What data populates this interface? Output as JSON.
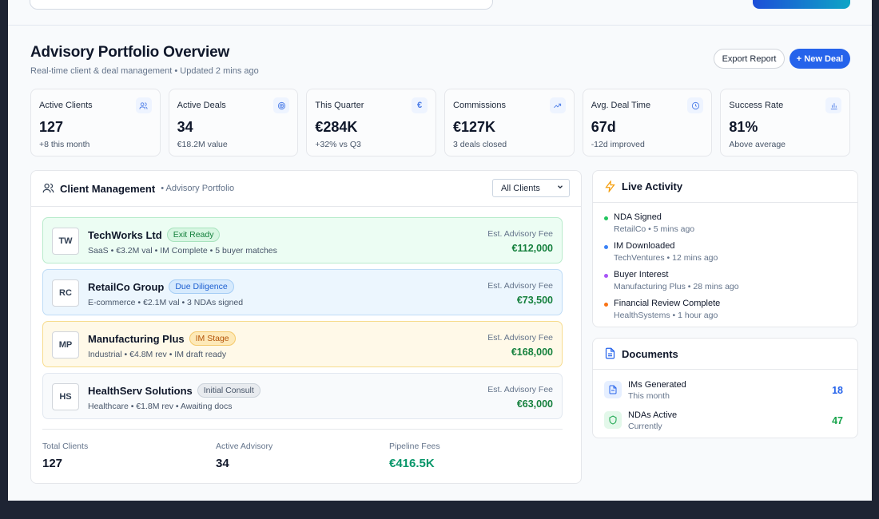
{
  "header": {
    "title": "Advisory Portfolio Overview",
    "subtitle": "Real-time client & deal management • Updated 2 mins ago",
    "export_label": "Export Report",
    "new_deal_label": "+ New Deal"
  },
  "stats": [
    {
      "label": "Active Clients",
      "value": "127",
      "sub": "+8 this month",
      "icon": "users-icon"
    },
    {
      "label": "Active Deals",
      "value": "34",
      "sub": "€18.2M value",
      "icon": "target-icon"
    },
    {
      "label": "This Quarter",
      "value": "€284K",
      "sub": "+32% vs Q3",
      "icon": "euro-icon"
    },
    {
      "label": "Commissions",
      "value": "€127K",
      "sub": "3 deals closed",
      "icon": "trending-up-icon"
    },
    {
      "label": "Avg. Deal Time",
      "value": "67d",
      "sub": "-12d improved",
      "icon": "clock-icon"
    },
    {
      "label": "Success Rate",
      "value": "81%",
      "sub": "Above average",
      "icon": "bar-chart-icon"
    }
  ],
  "clients": {
    "title": "Client Management",
    "tag": "• Advisory Portfolio",
    "filter": "All Clients",
    "items": [
      {
        "initials": "TW",
        "name": "TechWorks Ltd",
        "badge": "Exit Ready",
        "meta": "SaaS • €3.2M val • IM Complete • 5 buyer matches",
        "fee_label": "Est. Advisory Fee",
        "fee": "€112,000"
      },
      {
        "initials": "RC",
        "name": "RetailCo Group",
        "badge": "Due Diligence",
        "meta": "E-commerce • €2.1M val • 3 NDAs signed",
        "fee_label": "Est. Advisory Fee",
        "fee": "€73,500"
      },
      {
        "initials": "MP",
        "name": "Manufacturing Plus",
        "badge": "IM Stage",
        "meta": "Industrial • €4.8M rev • IM draft ready",
        "fee_label": "Est. Advisory Fee",
        "fee": "€168,000"
      },
      {
        "initials": "HS",
        "name": "HealthServ Solutions",
        "badge": "Initial Consult",
        "meta": "Healthcare • €1.8M rev • Awaiting docs",
        "fee_label": "Est. Advisory Fee",
        "fee": "€63,000"
      }
    ],
    "summary": [
      {
        "label": "Total Clients",
        "value": "127"
      },
      {
        "label": "Active Advisory",
        "value": "34"
      },
      {
        "label": "Pipeline Fees",
        "value": "€416.5K"
      }
    ]
  },
  "activity": {
    "title": "Live Activity",
    "items": [
      {
        "title": "NDA Signed",
        "sub": "RetailCo • 5 mins ago",
        "color": "#22c55e"
      },
      {
        "title": "IM Downloaded",
        "sub": "TechVentures • 12 mins ago",
        "color": "#3b82f6"
      },
      {
        "title": "Buyer Interest",
        "sub": "Manufacturing Plus • 28 mins ago",
        "color": "#a855f7"
      },
      {
        "title": "Financial Review Complete",
        "sub": "HealthSystems • 1 hour ago",
        "color": "#f97316"
      }
    ]
  },
  "documents": {
    "title": "Documents",
    "items": [
      {
        "title": "IMs Generated",
        "sub": "This month",
        "count": "18",
        "color": "#2563eb"
      },
      {
        "title": "NDAs Active",
        "sub": "Currently",
        "count": "47",
        "color": "#16a34a"
      }
    ]
  }
}
